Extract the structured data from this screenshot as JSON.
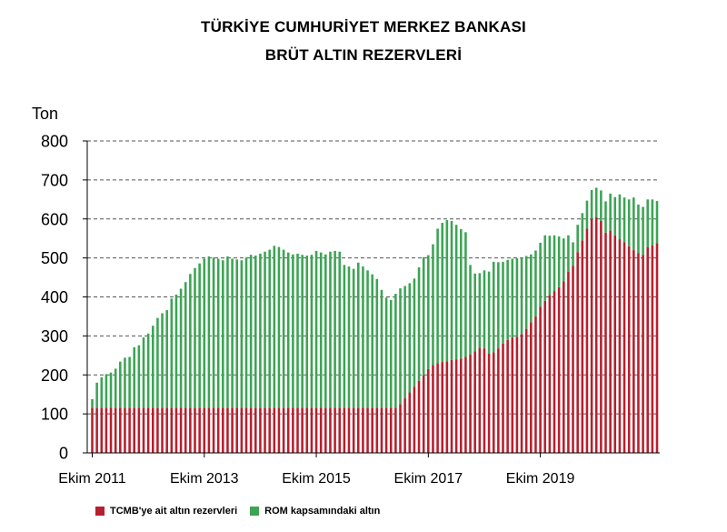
{
  "title": {
    "line1": "TÜRKİYE CUMHURİYET MERKEZ BANKASI",
    "line2": "BRÜT ALTIN REZERVLERİ"
  },
  "colors": {
    "tcmb": "#b5202e",
    "rom": "#3ca454",
    "grid": "#555555",
    "axis": "#000000"
  },
  "chart_data": {
    "type": "bar",
    "stacked": true,
    "ylabel": "Ton",
    "ylim": [
      0,
      800
    ],
    "yticks": [
      0,
      100,
      200,
      300,
      400,
      500,
      600,
      700,
      800
    ],
    "xtick_labels": [
      "Ekim 2011",
      "Ekim 2013",
      "Ekim 2015",
      "Ekim 2017",
      "Ekim 2019"
    ],
    "xtick_indices": [
      0,
      24,
      48,
      72,
      96
    ],
    "categories_start": "Ekim 2011",
    "categories_frequency": "monthly",
    "grid": "horizontal dashed",
    "legend_position": "bottom",
    "series": [
      {
        "name": "TCMB'ye ait altın rezervleri",
        "color": "#b5202e",
        "values": [
          116,
          116,
          116,
          116,
          116,
          116,
          116,
          116,
          116,
          116,
          116,
          116,
          116,
          116,
          116,
          116,
          116,
          116,
          116,
          116,
          116,
          116,
          116,
          116,
          116,
          116,
          116,
          116,
          116,
          116,
          116,
          116,
          116,
          116,
          116,
          116,
          116,
          116,
          116,
          116,
          116,
          116,
          116,
          116,
          116,
          116,
          116,
          116,
          116,
          116,
          116,
          116,
          116,
          116,
          116,
          116,
          116,
          116,
          116,
          116,
          116,
          116,
          116,
          116,
          116,
          116,
          125,
          140,
          155,
          170,
          185,
          200,
          215,
          225,
          230,
          233,
          235,
          238,
          240,
          242,
          246,
          252,
          260,
          270,
          268,
          255,
          258,
          268,
          280,
          290,
          295,
          298,
          305,
          318,
          335,
          350,
          375,
          390,
          405,
          415,
          425,
          440,
          465,
          480,
          515,
          545,
          575,
          600,
          605,
          595,
          565,
          570,
          558,
          548,
          540,
          530,
          520,
          512,
          508,
          528,
          532,
          538
        ]
      },
      {
        "name": "ROM kapsamındaki altın",
        "color": "#3ca454",
        "values": [
          22,
          64,
          78,
          86,
          90,
          100,
          118,
          128,
          130,
          155,
          160,
          180,
          190,
          210,
          230,
          242,
          250,
          280,
          290,
          305,
          322,
          343,
          358,
          370,
          382,
          388,
          385,
          382,
          378,
          388,
          382,
          380,
          378,
          385,
          392,
          390,
          395,
          400,
          405,
          415,
          412,
          405,
          398,
          393,
          395,
          392,
          390,
          392,
          402,
          398,
          393,
          400,
          402,
          400,
          366,
          362,
          356,
          372,
          362,
          352,
          342,
          330,
          302,
          282,
          276,
          292,
          297,
          288,
          280,
          277,
          291,
          302,
          292,
          310,
          345,
          357,
          362,
          357,
          345,
          332,
          320,
          230,
          200,
          191,
          200,
          210,
          232,
          221,
          210,
          205,
          203,
          201,
          195,
          187,
          174,
          169,
          164,
          168,
          152,
          143,
          130,
          110,
          93,
          60,
          70,
          70,
          72,
          74,
          75,
          78,
          80,
          95,
          98,
          115,
          115,
          120,
          135,
          125,
          123,
          122,
          118,
          108
        ]
      }
    ]
  },
  "legend": {
    "tcmb_label": "TCMB'ye ait altın rezervleri",
    "rom_label": "ROM kapsamındaki altın"
  }
}
